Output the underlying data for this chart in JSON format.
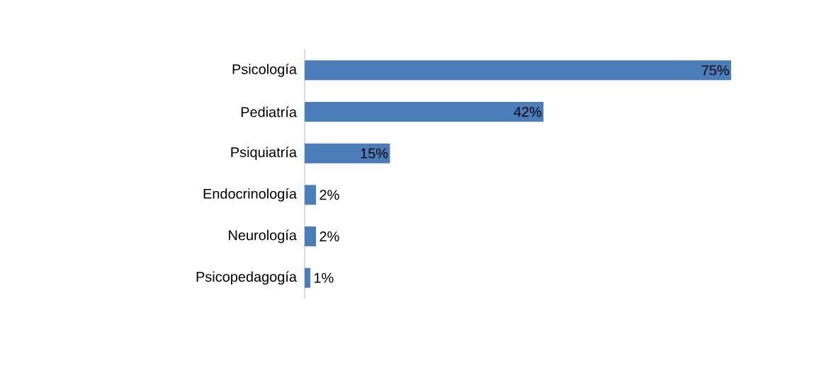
{
  "chart_data": {
    "type": "bar",
    "orientation": "horizontal",
    "categories": [
      "Psicología",
      "Pediatría",
      "Psiquiatría",
      "Endocrinología",
      "Neurología",
      "Psicopedagogía"
    ],
    "values": [
      75,
      42,
      15,
      2,
      2,
      1
    ],
    "value_labels": [
      "75%",
      "42%",
      "15%",
      "2%",
      "2%",
      "1%"
    ],
    "color": "#4a7ebb"
  }
}
